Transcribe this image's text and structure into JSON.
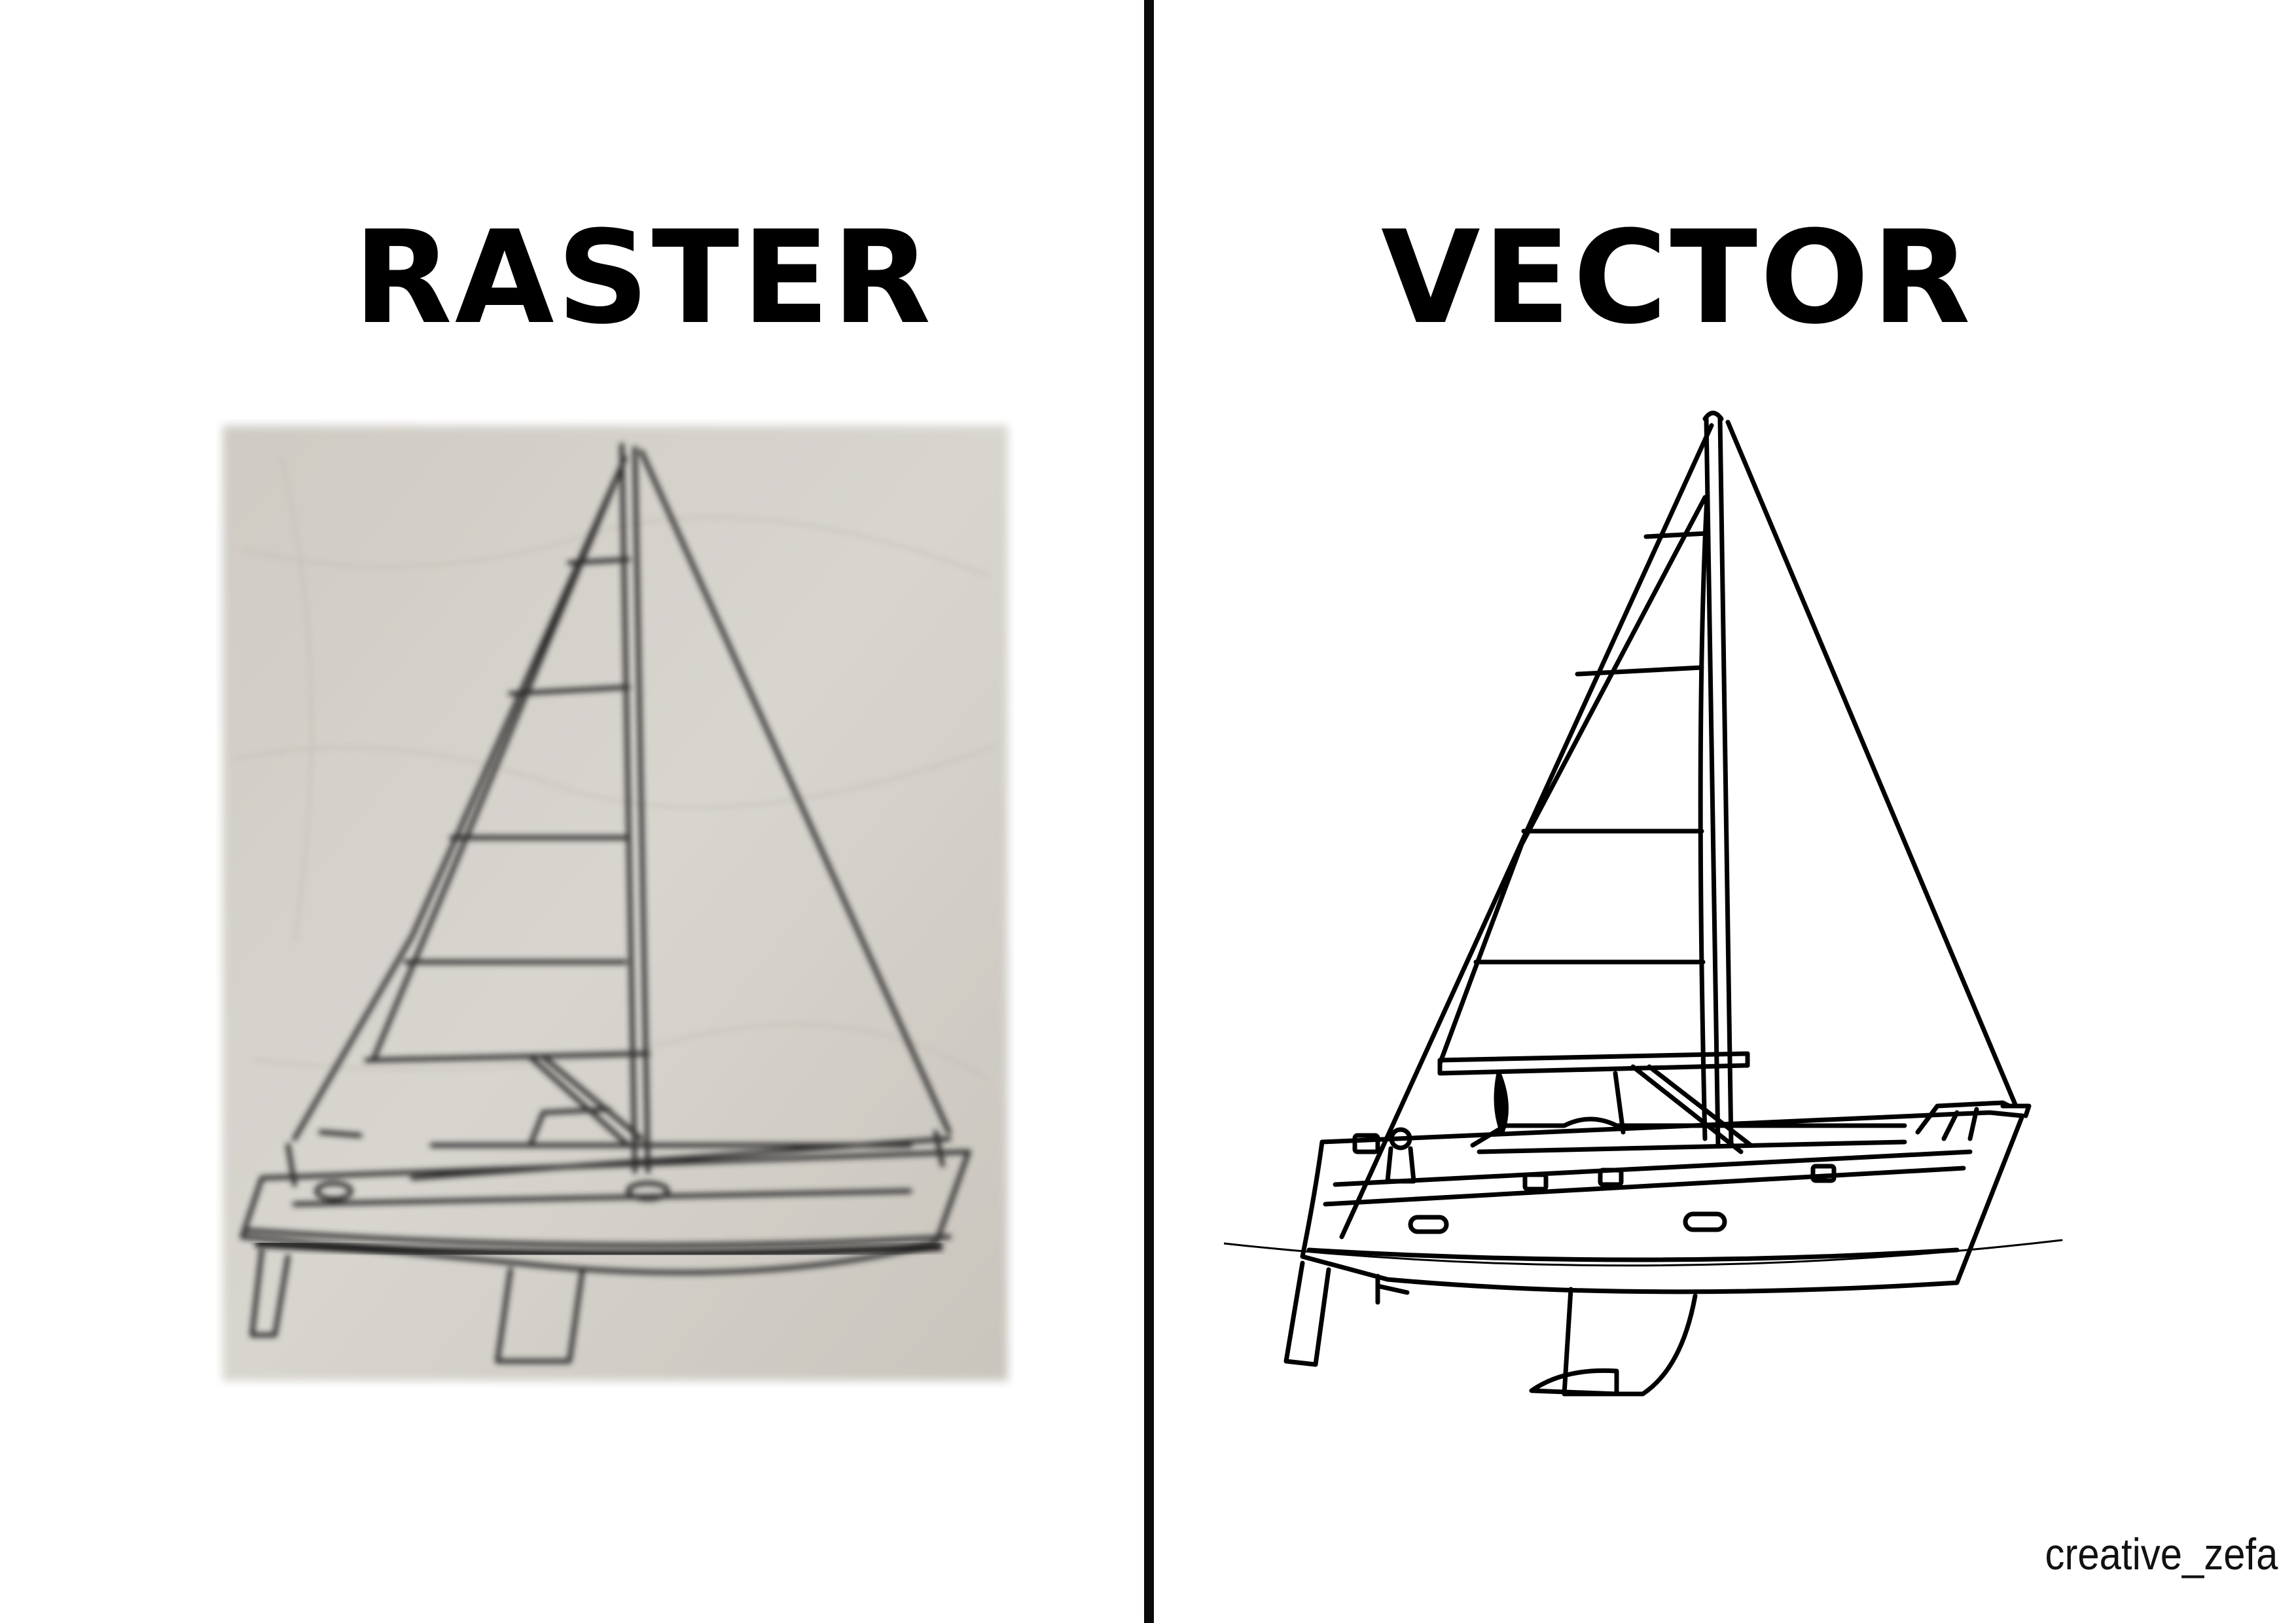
{
  "left_panel": {
    "heading": "RASTER",
    "image_icon": "sailboat-icon"
  },
  "right_panel": {
    "heading": "VECTOR",
    "image_icon": "sailboat-icon"
  },
  "credit": "creative_zefa",
  "colors": {
    "background": "#ffffff",
    "ink": "#000000",
    "raster_paper": "#d4d0c9",
    "divider": "#0a0a0a"
  }
}
